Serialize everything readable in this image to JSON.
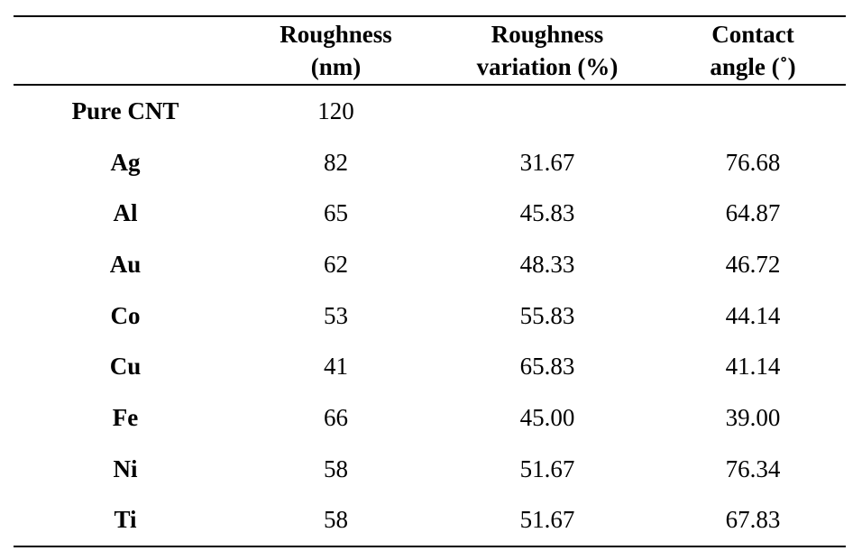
{
  "table": {
    "headers": [
      {
        "line1": "",
        "line2": ""
      },
      {
        "line1": "Roughness",
        "line2": "(nm)"
      },
      {
        "line1": "Roughness",
        "line2": "variation (%)"
      },
      {
        "line1": "Contact",
        "line2": "angle (˚)"
      }
    ],
    "rows": [
      {
        "label": "Pure CNT",
        "roughness": "120",
        "variation": "",
        "angle": ""
      },
      {
        "label": "Ag",
        "roughness": "82",
        "variation": "31.67",
        "angle": "76.68"
      },
      {
        "label": "Al",
        "roughness": "65",
        "variation": "45.83",
        "angle": "64.87"
      },
      {
        "label": "Au",
        "roughness": "62",
        "variation": "48.33",
        "angle": "46.72"
      },
      {
        "label": "Co",
        "roughness": "53",
        "variation": "55.83",
        "angle": "44.14"
      },
      {
        "label": "Cu",
        "roughness": "41",
        "variation": "65.83",
        "angle": "41.14"
      },
      {
        "label": "Fe",
        "roughness": "66",
        "variation": "45.00",
        "angle": "39.00"
      },
      {
        "label": "Ni",
        "roughness": "58",
        "variation": "51.67",
        "angle": "76.34"
      },
      {
        "label": "Ti",
        "roughness": "58",
        "variation": "51.67",
        "angle": "67.83"
      }
    ]
  }
}
